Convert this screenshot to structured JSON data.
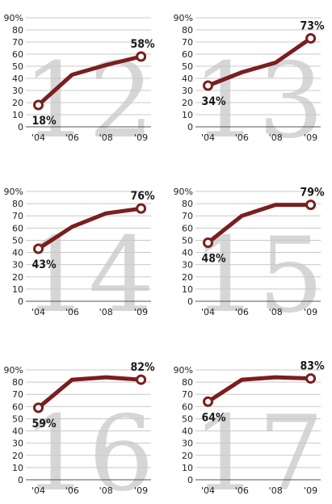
{
  "colors": {
    "line": "#7a1e1f",
    "grid": "#c8c8c8",
    "age_number": "#d6d6d6",
    "text": "#222222"
  },
  "chart_data": [
    {
      "type": "line",
      "panel_label": "12",
      "x": [
        "'04",
        "'06",
        "'08",
        "'09"
      ],
      "values": [
        18,
        43,
        51,
        58
      ],
      "y_ticks": [
        "90%",
        "80",
        "70",
        "60",
        "50",
        "40",
        "30",
        "20",
        "10",
        "0"
      ],
      "ylim": [
        0,
        90
      ],
      "grid": true,
      "point_labels": {
        "first": "18%",
        "last": "58%"
      }
    },
    {
      "type": "line",
      "panel_label": "13",
      "x": [
        "'04",
        "'06",
        "'08",
        "'09"
      ],
      "values": [
        34,
        45,
        53,
        73
      ],
      "y_ticks": [
        "90%",
        "80",
        "70",
        "60",
        "50",
        "40",
        "30",
        "20",
        "10",
        "0"
      ],
      "ylim": [
        0,
        90
      ],
      "grid": true,
      "point_labels": {
        "first": "34%",
        "last": "73%"
      }
    },
    {
      "type": "line",
      "panel_label": "14",
      "x": [
        "'04",
        "'06",
        "'08",
        "'09"
      ],
      "values": [
        43,
        61,
        72,
        76
      ],
      "y_ticks": [
        "90%",
        "80",
        "70",
        "60",
        "50",
        "40",
        "30",
        "20",
        "10",
        "0"
      ],
      "ylim": [
        0,
        90
      ],
      "grid": true,
      "point_labels": {
        "first": "43%",
        "last": "76%"
      }
    },
    {
      "type": "line",
      "panel_label": "15",
      "x": [
        "'04",
        "'06",
        "'08",
        "'09"
      ],
      "values": [
        48,
        70,
        79,
        79
      ],
      "y_ticks": [
        "90%",
        "80",
        "70",
        "60",
        "50",
        "40",
        "30",
        "20",
        "10",
        "0"
      ],
      "ylim": [
        0,
        90
      ],
      "grid": true,
      "point_labels": {
        "first": "48%",
        "last": "79%"
      }
    },
    {
      "type": "line",
      "panel_label": "16",
      "x": [
        "'04",
        "'06",
        "'08",
        "'09"
      ],
      "values": [
        59,
        82,
        84,
        82
      ],
      "y_ticks": [
        "90%",
        "80",
        "70",
        "60",
        "50",
        "40",
        "30",
        "20",
        "10",
        "0"
      ],
      "ylim": [
        0,
        90
      ],
      "grid": true,
      "point_labels": {
        "first": "59%",
        "last": "82%"
      }
    },
    {
      "type": "line",
      "panel_label": "17",
      "x": [
        "'04",
        "'06",
        "'08",
        "'09"
      ],
      "values": [
        64,
        82,
        84,
        83
      ],
      "y_ticks": [
        "90%",
        "80",
        "70",
        "60",
        "50",
        "40",
        "30",
        "20",
        "10",
        "0"
      ],
      "ylim": [
        0,
        90
      ],
      "grid": true,
      "point_labels": {
        "first": "64%",
        "last": "83%"
      }
    }
  ]
}
